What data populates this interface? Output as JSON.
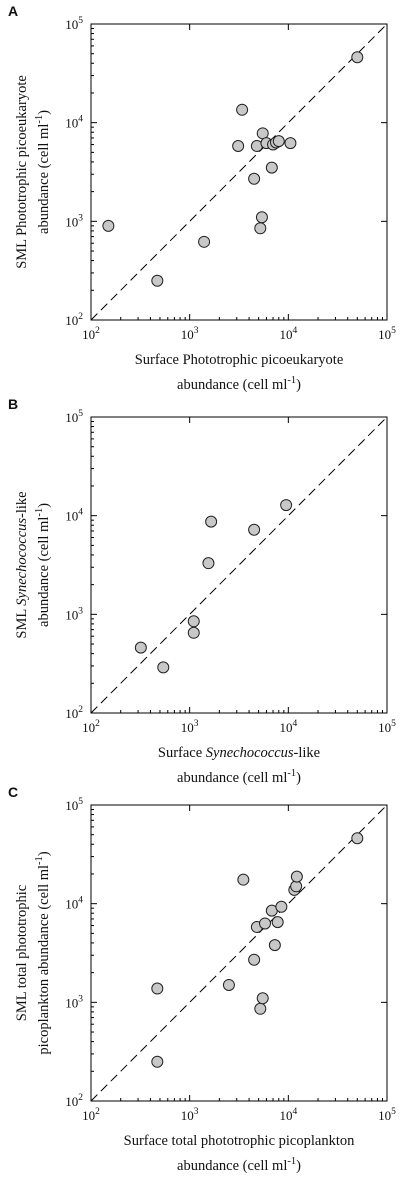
{
  "chart_data": [
    {
      "type": "scatter",
      "panel": "A",
      "xlabel_lines": [
        [
          {
            "t": "Surface Phototrophic picoeukaryote"
          }
        ],
        [
          {
            "t": "abundance (cell ml"
          },
          {
            "t": "-1",
            "sup": true
          },
          {
            "t": ")"
          }
        ]
      ],
      "ylabel_lines": [
        [
          {
            "t": "SML Phototrophic picoeukaryote"
          }
        ],
        [
          {
            "t": "abundance (cell ml"
          },
          {
            "t": "-1",
            "sup": true
          },
          {
            "t": ")"
          }
        ]
      ],
      "xscale": "log",
      "yscale": "log",
      "xlim": [
        100,
        100000
      ],
      "ylim": [
        100,
        100000
      ],
      "ticks": [
        {
          "b": "10",
          "e": "2"
        },
        {
          "b": "10",
          "e": "3"
        },
        {
          "b": "10",
          "e": "4"
        },
        {
          "b": "10",
          "e": "5"
        }
      ],
      "reference_line": "1:1 dashed",
      "grid": false,
      "points": [
        {
          "x": 150,
          "y": 900
        },
        {
          "x": 470,
          "y": 250
        },
        {
          "x": 1400,
          "y": 620
        },
        {
          "x": 3100,
          "y": 5800
        },
        {
          "x": 3400,
          "y": 13500
        },
        {
          "x": 4500,
          "y": 2700
        },
        {
          "x": 4800,
          "y": 5800
        },
        {
          "x": 5200,
          "y": 850
        },
        {
          "x": 5400,
          "y": 1100
        },
        {
          "x": 5500,
          "y": 7800
        },
        {
          "x": 6000,
          "y": 6200
        },
        {
          "x": 6800,
          "y": 3500
        },
        {
          "x": 7000,
          "y": 6000
        },
        {
          "x": 7500,
          "y": 6300
        },
        {
          "x": 8000,
          "y": 6500
        },
        {
          "x": 10500,
          "y": 6200
        },
        {
          "x": 50000,
          "y": 46000
        }
      ]
    },
    {
      "type": "scatter",
      "panel": "B",
      "xlabel_lines": [
        [
          {
            "t": "Surface "
          },
          {
            "t": "Synechococcus",
            "i": true
          },
          {
            "t": "-like"
          }
        ],
        [
          {
            "t": "abundance (cell ml"
          },
          {
            "t": "-1",
            "sup": true
          },
          {
            "t": ")"
          }
        ]
      ],
      "ylabel_lines": [
        [
          {
            "t": "SML "
          },
          {
            "t": "Synechococcus",
            "i": true
          },
          {
            "t": "-like"
          }
        ],
        [
          {
            "t": "abundance (cell ml"
          },
          {
            "t": "-1",
            "sup": true
          },
          {
            "t": ")"
          }
        ]
      ],
      "xscale": "log",
      "yscale": "log",
      "xlim": [
        100,
        100000
      ],
      "ylim": [
        100,
        100000
      ],
      "ticks": [
        {
          "b": "10",
          "e": "2"
        },
        {
          "b": "10",
          "e": "3"
        },
        {
          "b": "10",
          "e": "4"
        },
        {
          "b": "10",
          "e": "5"
        }
      ],
      "reference_line": "1:1 dashed",
      "grid": false,
      "points": [
        {
          "x": 320,
          "y": 460
        },
        {
          "x": 540,
          "y": 290
        },
        {
          "x": 1100,
          "y": 850
        },
        {
          "x": 1100,
          "y": 650
        },
        {
          "x": 1550,
          "y": 3300
        },
        {
          "x": 1650,
          "y": 8700
        },
        {
          "x": 4500,
          "y": 7200
        },
        {
          "x": 9500,
          "y": 12800
        }
      ]
    },
    {
      "type": "scatter",
      "panel": "C",
      "xlabel_lines": [
        [
          {
            "t": "Surface total phototrophic picoplankton"
          }
        ],
        [
          {
            "t": "abundance (cell ml"
          },
          {
            "t": "-1",
            "sup": true
          },
          {
            "t": ")"
          }
        ]
      ],
      "ylabel_lines": [
        [
          {
            "t": "SML total phototrophic"
          }
        ],
        [
          {
            "t": "picoplankton abundance (cell ml"
          },
          {
            "t": "-1",
            "sup": true
          },
          {
            "t": ")"
          }
        ]
      ],
      "xscale": "log",
      "yscale": "log",
      "xlim": [
        100,
        100000
      ],
      "ylim": [
        100,
        100000
      ],
      "ticks": [
        {
          "b": "10",
          "e": "2"
        },
        {
          "b": "10",
          "e": "3"
        },
        {
          "b": "10",
          "e": "4"
        },
        {
          "b": "10",
          "e": "5"
        }
      ],
      "reference_line": "1:1 dashed",
      "grid": false,
      "points": [
        {
          "x": 470,
          "y": 1380
        },
        {
          "x": 470,
          "y": 250
        },
        {
          "x": 2500,
          "y": 1500
        },
        {
          "x": 3500,
          "y": 17500
        },
        {
          "x": 4500,
          "y": 2700
        },
        {
          "x": 4800,
          "y": 5800
        },
        {
          "x": 5200,
          "y": 860
        },
        {
          "x": 5500,
          "y": 1100
        },
        {
          "x": 5800,
          "y": 6300
        },
        {
          "x": 6800,
          "y": 8500
        },
        {
          "x": 7300,
          "y": 3800
        },
        {
          "x": 7800,
          "y": 6500
        },
        {
          "x": 8500,
          "y": 9300
        },
        {
          "x": 11500,
          "y": 13800
        },
        {
          "x": 12000,
          "y": 15000
        },
        {
          "x": 12200,
          "y": 18800
        },
        {
          "x": 50000,
          "y": 46000
        }
      ]
    }
  ],
  "colors": {
    "point_fill": "#c8c8c8",
    "point_stroke": "#222222",
    "axis": "#000000"
  }
}
